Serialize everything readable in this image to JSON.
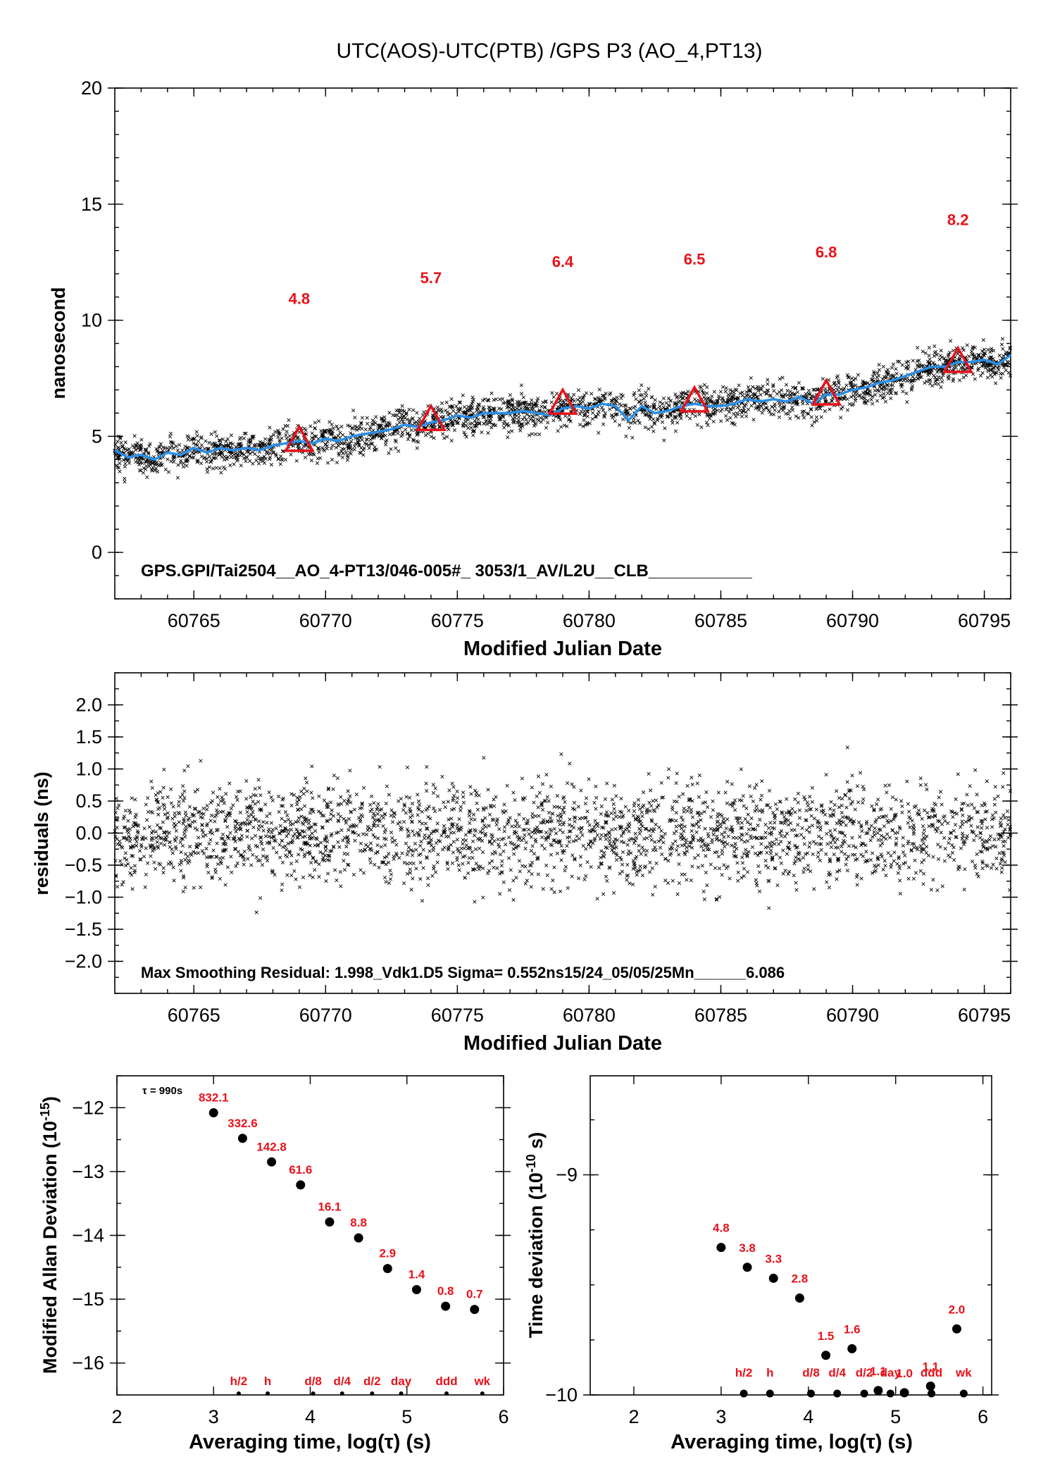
{
  "title": "UTC(AOS)-UTC(PTB)  /GPS  P3  (AO_4,PT13)",
  "colors": {
    "smooth_line": "#2a8fe8",
    "markers": "#e8111a",
    "labels": "#e8111a",
    "points": "#000000"
  },
  "chart_data": [
    {
      "id": "time-series",
      "type": "scatter",
      "xlabel": "Modified Julian Date",
      "ylabel": "nanosecond",
      "xlim": [
        60762,
        60796
      ],
      "ylim": [
        -2,
        20
      ],
      "xticks": [
        60765,
        60770,
        60775,
        60780,
        60785,
        60790,
        60795
      ],
      "yticks": [
        0,
        5,
        10,
        15,
        20
      ],
      "note": "GPS.GPI/Tai2504__AO_4-PT13/046-005#_  3053/1_AV/L2U__CLB___________",
      "smoothed_series": {
        "x": [
          60762,
          60762.5,
          60763,
          60763.5,
          60764,
          60764.5,
          60765,
          60765.5,
          60766,
          60766.5,
          60767,
          60767.5,
          60768,
          60768.5,
          60769,
          60769.5,
          60770,
          60770.5,
          60771,
          60771.5,
          60772,
          60772.5,
          60773,
          60773.5,
          60774,
          60774.5,
          60775,
          60775.5,
          60776,
          60776.5,
          60777,
          60777.5,
          60778,
          60778.5,
          60779,
          60779.5,
          60780,
          60780.5,
          60781,
          60781.5,
          60782,
          60782.5,
          60783,
          60783.5,
          60784,
          60784.5,
          60785,
          60785.5,
          60786,
          60786.5,
          60787,
          60787.5,
          60788,
          60788.5,
          60789,
          60789.5,
          60790,
          60790.5,
          60791,
          60791.5,
          60792,
          60792.5,
          60793,
          60793.5,
          60794,
          60794.5,
          60795,
          60795.5,
          60796
        ],
        "y": [
          4.4,
          4.1,
          4.2,
          4.0,
          4.3,
          4.2,
          4.5,
          4.3,
          4.5,
          4.4,
          4.5,
          4.4,
          4.6,
          4.7,
          4.8,
          4.7,
          4.9,
          4.8,
          5.0,
          5.1,
          5.2,
          5.3,
          5.5,
          5.4,
          5.6,
          5.7,
          5.9,
          5.8,
          6.0,
          6.0,
          6.0,
          6.1,
          6.0,
          5.9,
          6.2,
          6.3,
          6.2,
          6.4,
          6.3,
          5.7,
          6.3,
          6.0,
          6.1,
          6.3,
          6.4,
          6.3,
          6.3,
          6.4,
          6.6,
          6.5,
          6.6,
          6.5,
          6.7,
          6.4,
          6.8,
          6.8,
          7.0,
          7.1,
          7.3,
          7.4,
          7.6,
          7.8,
          8.0,
          8.0,
          8.2,
          8.2,
          8.3,
          8.1,
          8.5
        ]
      },
      "markers": [
        {
          "x": 60769,
          "y": 4.8,
          "label": "4.8"
        },
        {
          "x": 60774,
          "y": 5.7,
          "label": "5.7"
        },
        {
          "x": 60779,
          "y": 6.4,
          "label": "6.4"
        },
        {
          "x": 60784,
          "y": 6.5,
          "label": "6.5"
        },
        {
          "x": 60789,
          "y": 6.8,
          "label": "6.8"
        },
        {
          "x": 60794,
          "y": 8.2,
          "label": "8.2"
        }
      ],
      "scatter_spread_ns": 0.55
    },
    {
      "id": "residuals",
      "type": "scatter",
      "xlabel": "Modified Julian Date",
      "ylabel": "residuals (ns)",
      "xlim": [
        60762,
        60796
      ],
      "ylim": [
        -2.5,
        2.5
      ],
      "xticks": [
        60765,
        60770,
        60775,
        60780,
        60785,
        60790,
        60795
      ],
      "yticks": [
        -2.0,
        -1.5,
        -1.0,
        -0.5,
        0.0,
        0.5,
        1.0,
        1.5,
        2.0
      ],
      "ytick_labels": [
        "−2.0",
        "−1.5",
        "−1.0",
        "−0.5",
        "0.0",
        "0.5",
        "1.0",
        "1.5",
        "2.0"
      ],
      "note": "Max Smoothing Residual: 1.998_Vdk1.D5  Sigma= 0.552ns15/24_05/05/25Mn______6.086",
      "sigma_ns": 0.552,
      "max_residual_ns": 1.998
    },
    {
      "id": "allan-deviation",
      "type": "scatter",
      "xlabel": "Averaging time, log(τ) (s)",
      "ylabel_main": "Modified Allan Deviation (10",
      "ylabel_exp": "-15",
      "ylabel_end": ")",
      "xlim": [
        2,
        6
      ],
      "ylim": [
        -16.5,
        -11.5
      ],
      "xticks": [
        2,
        3,
        4,
        5,
        6
      ],
      "yticks": [
        -12,
        -13,
        -14,
        -15,
        -16
      ],
      "ytick_labels": [
        "−12",
        "−13",
        "−14",
        "−15",
        "−16"
      ],
      "tau_note": "τ = 990s",
      "points": [
        {
          "x": 3.0,
          "y": -12.08,
          "label": "832.1"
        },
        {
          "x": 3.3,
          "y": -12.48,
          "label": "332.6"
        },
        {
          "x": 3.6,
          "y": -12.85,
          "label": "142.8"
        },
        {
          "x": 3.9,
          "y": -13.21,
          "label": "61.6"
        },
        {
          "x": 4.2,
          "y": -13.79,
          "label": "16.1"
        },
        {
          "x": 4.5,
          "y": -14.04,
          "label": "8.8"
        },
        {
          "x": 4.8,
          "y": -14.52,
          "label": "2.9"
        },
        {
          "x": 5.1,
          "y": -14.85,
          "label": "1.4"
        },
        {
          "x": 5.4,
          "y": -15.11,
          "label": "0.8"
        },
        {
          "x": 5.7,
          "y": -15.16,
          "label": "0.7"
        }
      ],
      "time_markers": [
        {
          "x": 3.26,
          "label": "h/2"
        },
        {
          "x": 3.56,
          "label": "h"
        },
        {
          "x": 4.03,
          "label": "d/8"
        },
        {
          "x": 4.33,
          "label": "d/4"
        },
        {
          "x": 4.64,
          "label": "d/2"
        },
        {
          "x": 4.94,
          "label": "day"
        },
        {
          "x": 5.41,
          "label": "ddd"
        },
        {
          "x": 5.78,
          "label": "wk"
        }
      ]
    },
    {
      "id": "time-deviation",
      "type": "scatter",
      "xlabel": "Averaging time, log(τ) (s)",
      "ylabel_main": "Time deviation (10",
      "ylabel_exp": "-10",
      "ylabel_end": " s)",
      "xlim": [
        1.5,
        6.1
      ],
      "ylim": [
        -10,
        -8.55
      ],
      "xticks": [
        2,
        3,
        4,
        5,
        6
      ],
      "yticks": [
        -9,
        -10
      ],
      "ytick_labels": [
        "−9",
        "−10"
      ],
      "points": [
        {
          "x": 3.0,
          "y": -9.33,
          "label": "4.8"
        },
        {
          "x": 3.3,
          "y": -9.42,
          "label": "3.8"
        },
        {
          "x": 3.6,
          "y": -9.47,
          "label": "3.3"
        },
        {
          "x": 3.9,
          "y": -9.56,
          "label": "2.8"
        },
        {
          "x": 4.2,
          "y": -9.82,
          "label": "1.5"
        },
        {
          "x": 4.5,
          "y": -9.79,
          "label": "1.6"
        },
        {
          "x": 4.8,
          "y": -9.98,
          "label": "1.1"
        },
        {
          "x": 5.1,
          "y": -9.99,
          "label": "1.0"
        },
        {
          "x": 5.4,
          "y": -9.96,
          "label": "1.1"
        },
        {
          "x": 5.7,
          "y": -9.7,
          "label": "2.0"
        }
      ],
      "time_markers": [
        {
          "x": 3.26,
          "label": "h/2"
        },
        {
          "x": 3.56,
          "label": "h"
        },
        {
          "x": 4.03,
          "label": "d/8"
        },
        {
          "x": 4.33,
          "label": "d/4"
        },
        {
          "x": 4.64,
          "label": "d/2"
        },
        {
          "x": 4.94,
          "label": "day"
        },
        {
          "x": 5.41,
          "label": "ddd"
        },
        {
          "x": 5.78,
          "label": "wk"
        }
      ]
    }
  ]
}
